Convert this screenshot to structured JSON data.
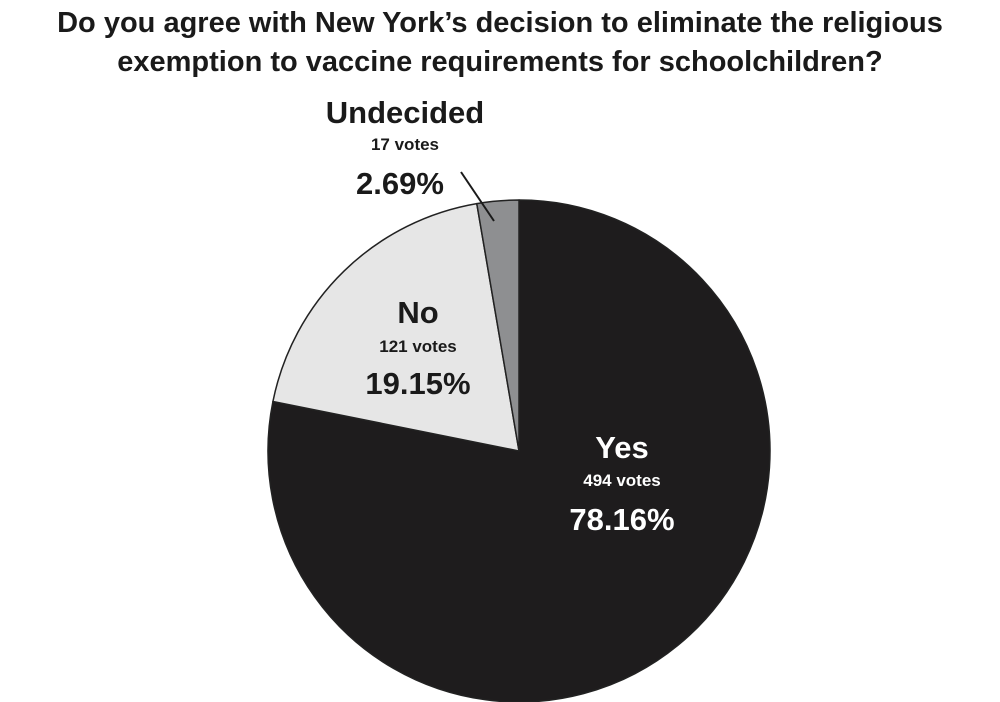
{
  "chart_data": {
    "type": "pie",
    "title_lines": [
      "Do you agree with New York’s decision to eliminate the religious",
      "exemption to vaccine requirements for schoolchildren?"
    ],
    "slices": [
      {
        "label": "Yes",
        "votes_text": "494 votes",
        "percent_text": "78.16%",
        "value": 78.16,
        "color": "#1e1c1d",
        "text_color": "#ffffff"
      },
      {
        "label": "No",
        "votes_text": "121 votes",
        "percent_text": "19.15%",
        "value": 19.15,
        "color": "#e6e6e6",
        "text_color": "#1a1a1a"
      },
      {
        "label": "Undecided",
        "votes_text": "17 votes",
        "percent_text": "2.69%",
        "value": 2.69,
        "color": "#8e8f91",
        "text_color": "#1a1a1a"
      }
    ],
    "start_angle": "12 o'clock",
    "direction": "clockwise",
    "outline_color": "#222222"
  }
}
